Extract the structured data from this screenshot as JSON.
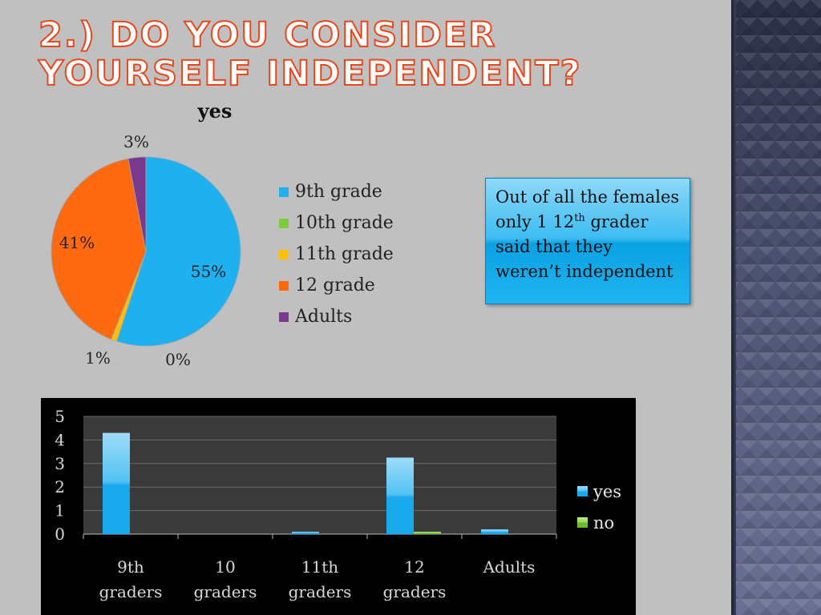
{
  "slide": {
    "title": "2.) Do you consider yourself independent?",
    "callout": {
      "before_sup": "Out of all the females only 1 12",
      "sup": "th",
      "after_sup": " grader said that they weren’t independent"
    }
  },
  "colors": {
    "title_text": "#e8481c",
    "blue": "#1fb0f0",
    "green": "#7ccc3c",
    "yellow": "#ffc000",
    "orange": "#ff6a10",
    "purple": "#7a3a8c"
  },
  "chart_data": [
    {
      "type": "pie",
      "title": "yes",
      "legend_position": "right",
      "slices": [
        {
          "label": "9th grade",
          "value": 55,
          "display": "55%",
          "color": "#1fb0f0"
        },
        {
          "label": "10th grade",
          "value": 0,
          "display": "0%",
          "color": "#7ccc3c"
        },
        {
          "label": "11th grade",
          "value": 1,
          "display": "1%",
          "color": "#ffc000"
        },
        {
          "label": "12 grade",
          "value": 41,
          "display": "41%",
          "color": "#ff6a10"
        },
        {
          "label": "Adults",
          "value": 3,
          "display": "3%",
          "color": "#7a3a8c"
        }
      ]
    },
    {
      "type": "bar",
      "categories": [
        "9th graders",
        "10 graders",
        "11th graders",
        "12 graders",
        "Adults"
      ],
      "series": [
        {
          "name": "yes",
          "values": [
            4.3,
            0,
            0.1,
            3.25,
            0.2
          ],
          "color": "#1fb0f0"
        },
        {
          "name": "no",
          "values": [
            0,
            0,
            0,
            0.1,
            0
          ],
          "color": "#7ccc3c"
        }
      ],
      "ylim": [
        0,
        5
      ],
      "yticks": [
        "0",
        "1",
        "2",
        "3",
        "4",
        "5"
      ],
      "grid": true,
      "legend_position": "right",
      "background": "#000000"
    }
  ]
}
